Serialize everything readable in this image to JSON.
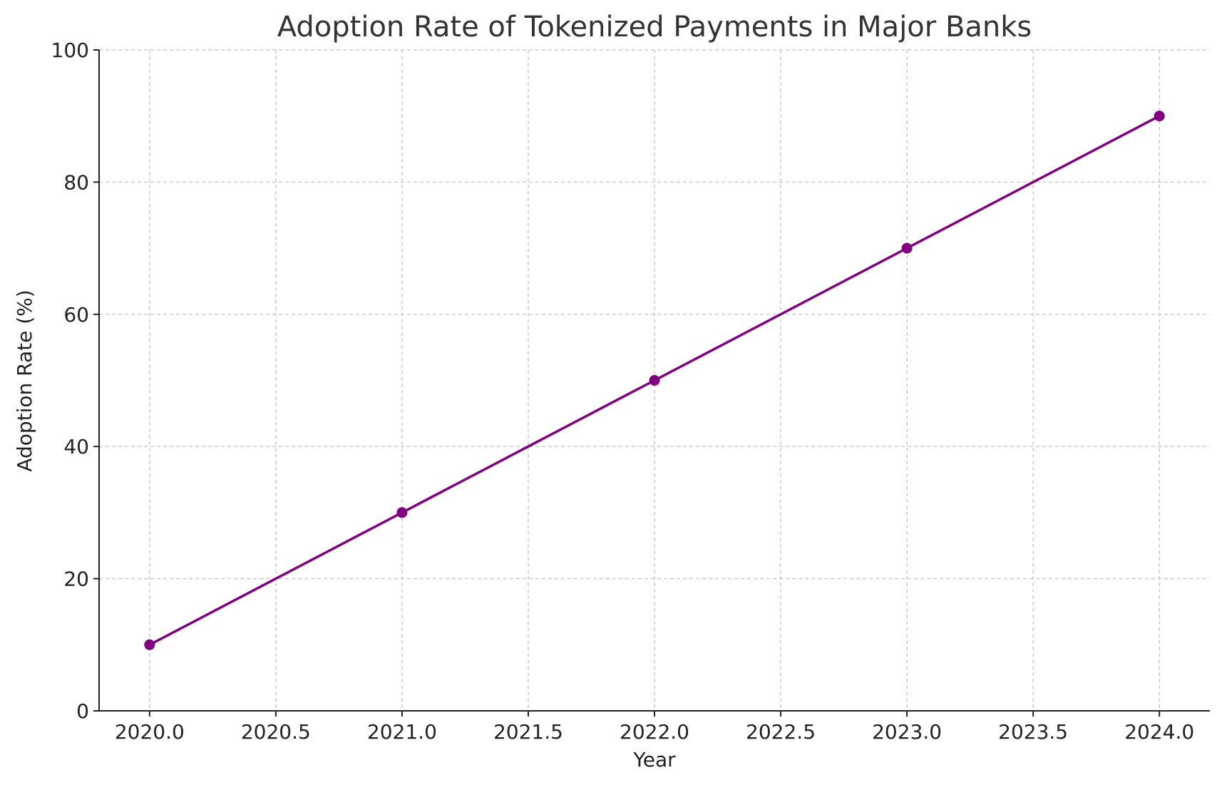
{
  "chart_data": {
    "type": "line",
    "title": "Adoption Rate of Tokenized Payments in Major Banks",
    "xlabel": "Year",
    "ylabel": "Adoption Rate (%)",
    "xlim": [
      2019.8,
      2024.2
    ],
    "ylim": [
      0,
      100
    ],
    "x_ticks": [
      2020.0,
      2020.5,
      2021.0,
      2021.5,
      2022.0,
      2022.5,
      2023.0,
      2023.5,
      2024.0
    ],
    "x_tick_labels": [
      "2020.0",
      "2020.5",
      "2021.0",
      "2021.5",
      "2022.0",
      "2022.5",
      "2023.0",
      "2023.5",
      "2024.0"
    ],
    "y_ticks": [
      0,
      20,
      40,
      60,
      80,
      100
    ],
    "y_tick_labels": [
      "0",
      "20",
      "40",
      "60",
      "80",
      "100"
    ],
    "grid": true,
    "legend": false,
    "series": [
      {
        "x": [
          2020,
          2021,
          2022,
          2023,
          2024
        ],
        "values": [
          10,
          30,
          50,
          70,
          90
        ],
        "color": "#800080",
        "marker": "circle"
      }
    ]
  }
}
